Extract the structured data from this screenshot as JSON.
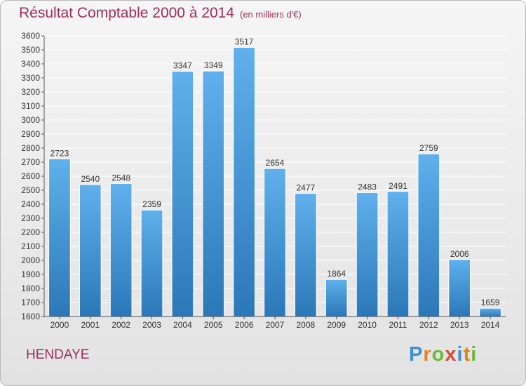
{
  "title": "Résultat Comptable 2000 à 2014",
  "subtitle": "(en milliers d'€)",
  "city": "HENDAYE",
  "logo": {
    "text": "Proxiti",
    "letters": [
      "P",
      "r",
      "o",
      "x",
      "i",
      "t",
      "i"
    ]
  },
  "colors": {
    "bar_top": "#5fb0ec",
    "bar_bottom": "#2b78b9",
    "title": "#9b2d5c",
    "grid": "#ffffff"
  },
  "chart_data": {
    "type": "bar",
    "title": "Résultat Comptable 2000 à 2014",
    "xlabel": "",
    "ylabel": "",
    "categories": [
      "2000",
      "2001",
      "2002",
      "2003",
      "2004",
      "2005",
      "2006",
      "2007",
      "2008",
      "2009",
      "2010",
      "2011",
      "2012",
      "2013",
      "2014"
    ],
    "values": [
      2723,
      2540,
      2548,
      2359,
      3347,
      3349,
      3517,
      2654,
      2477,
      1864,
      2483,
      2491,
      2759,
      2006,
      1659
    ],
    "ylim": [
      1600,
      3600
    ],
    "yticks": [
      1600,
      1700,
      1800,
      1900,
      2000,
      2100,
      2200,
      2300,
      2400,
      2500,
      2600,
      2700,
      2800,
      2900,
      3000,
      3100,
      3200,
      3300,
      3400,
      3500,
      3600
    ],
    "grid": true,
    "legend": "none"
  }
}
